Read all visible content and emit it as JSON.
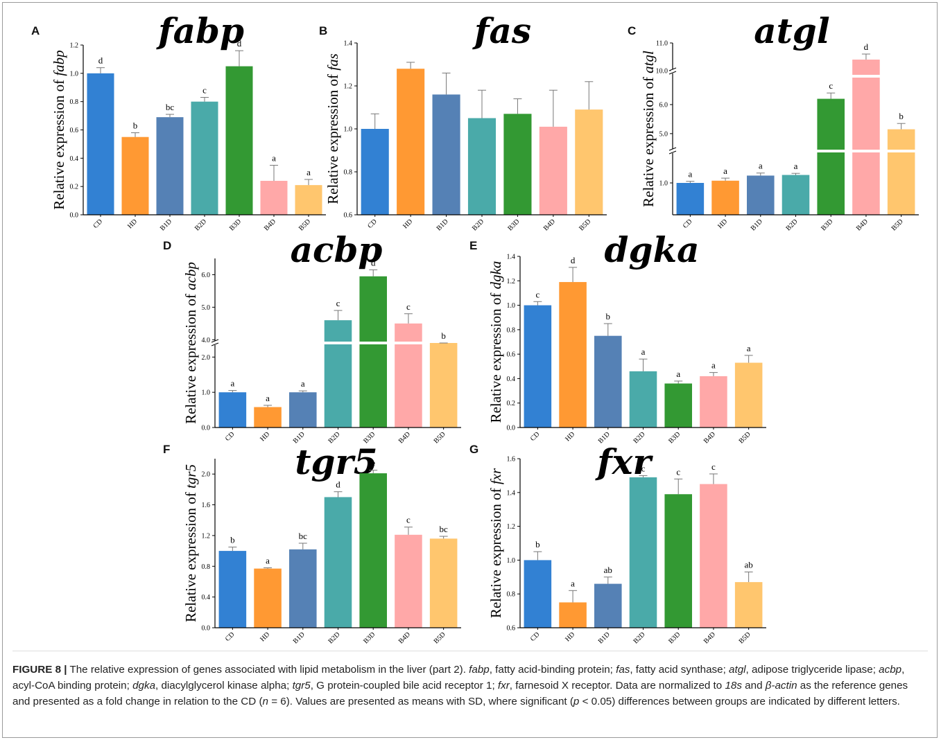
{
  "figure": {
    "caption": {
      "label": "FIGURE 8 |",
      "intro": " The relative expression of genes associated with lipid metabolism in the liver (part 2). ",
      "defs": [
        {
          "abbr": "fabp",
          "text": ", fatty acid-binding protein; "
        },
        {
          "abbr": "fas",
          "text": ", fatty acid synthase; "
        },
        {
          "abbr": "atgl",
          "text": ", adipose triglyceride lipase; "
        },
        {
          "abbr": "acbp",
          "text": ", acyl-CoA binding protein; "
        },
        {
          "abbr": "dgka",
          "text": ", diacylglycerol kinase alpha; "
        },
        {
          "abbr": "tgr5",
          "text": ", G protein-coupled bile acid receptor 1; "
        },
        {
          "abbr": "fxr",
          "text": ", farnesoid X receptor."
        }
      ],
      "norm_pre": " Data are normalized to ",
      "ref1": "18s",
      "norm_and": " and ",
      "ref2": "β-actin",
      "norm_mid": " as the reference genes and presented as a fold change in relation to the CD (",
      "n_var": "n",
      "n_val": " = 6). Values are presented as means with SD, where significant (",
      "p_var": "p",
      "p_val": " < 0.05) differences between groups are indicated by different letters."
    }
  },
  "colors": {
    "CD": "#3281d3",
    "HD": "#ff9933",
    "B1D": "#5581b5",
    "B2D": "#4aaaa9",
    "B3D": "#339933",
    "B4D": "#ffa8a8",
    "B5D": "#ffc66e"
  },
  "chart_data": [
    {
      "panel": "A",
      "type": "bar",
      "title": "fabp",
      "ylabel_prefix": "Relative expression of ",
      "ylabel_gene": "fabp",
      "categories": [
        "CD",
        "HD",
        "B1D",
        "B2D",
        "B3D",
        "B4D",
        "B5D"
      ],
      "values": [
        1.0,
        0.55,
        0.69,
        0.8,
        1.05,
        0.24,
        0.21
      ],
      "errors": [
        0.04,
        0.03,
        0.02,
        0.03,
        0.11,
        0.11,
        0.04
      ],
      "letters": [
        "d",
        "b",
        "bc",
        "c",
        "d",
        "a",
        "a"
      ],
      "ylim": [
        0,
        1.2
      ],
      "ticks": [
        "0.0",
        "0.2",
        "0.4",
        "0.6",
        "0.8",
        "1.0",
        "1.2"
      ]
    },
    {
      "panel": "B",
      "type": "bar",
      "title": "fas",
      "ylabel_prefix": "Relative expression of ",
      "ylabel_gene": "fas",
      "categories": [
        "CD",
        "HD",
        "B1D",
        "B2D",
        "B3D",
        "B4D",
        "B5D"
      ],
      "values": [
        1.0,
        1.28,
        1.16,
        1.05,
        1.07,
        1.01,
        1.09
      ],
      "errors": [
        0.07,
        0.03,
        0.1,
        0.13,
        0.07,
        0.17,
        0.13
      ],
      "letters": [
        "",
        "",
        "",
        "",
        "",
        "",
        ""
      ],
      "ylim": [
        0.6,
        1.4
      ],
      "ticks": [
        "0.6",
        "0.8",
        "1.0",
        "1.2",
        "1.4"
      ]
    },
    {
      "panel": "C",
      "type": "bar",
      "title": "atgl",
      "ylabel_prefix": "Relative expression of ",
      "ylabel_gene": "atgl",
      "categories": [
        "CD",
        "HD",
        "B1D",
        "B2D",
        "B3D",
        "B4D",
        "B5D"
      ],
      "values": [
        1.0,
        1.07,
        1.23,
        1.25,
        6.2,
        10.4,
        5.15
      ],
      "errors": [
        0.05,
        0.08,
        0.08,
        0.05,
        0.2,
        0.2,
        0.2
      ],
      "letters": [
        "a",
        "a",
        "a",
        "a",
        "c",
        "d",
        "b"
      ],
      "y_axis_break": true,
      "tick_labels": [
        "1.0",
        "5.0",
        "6.0",
        "10.0",
        "11.0"
      ]
    },
    {
      "panel": "D",
      "type": "bar",
      "title": "acbp",
      "ylabel_prefix": "Relative expression of ",
      "ylabel_gene": "acbp",
      "categories": [
        "CD",
        "HD",
        "B1D",
        "B2D",
        "B3D",
        "B4D",
        "B5D"
      ],
      "values": [
        1.0,
        0.58,
        1.0,
        4.6,
        5.95,
        4.5,
        2.45
      ],
      "errors": [
        0.05,
        0.05,
        0.04,
        0.3,
        0.2,
        0.3,
        0.2
      ],
      "letters": [
        "a",
        "a",
        "a",
        "c",
        "d",
        "c",
        "b"
      ],
      "y_axis_break": true,
      "tick_labels": [
        "0.0",
        "1.0",
        "2.0",
        "4.0",
        "5.0",
        "6.0"
      ]
    },
    {
      "panel": "E",
      "type": "bar",
      "title": "dgka",
      "ylabel_prefix": "Relative expression of ",
      "ylabel_gene": "dgka",
      "categories": [
        "CD",
        "HD",
        "B1D",
        "B2D",
        "B3D",
        "B4D",
        "B5D"
      ],
      "values": [
        1.0,
        1.19,
        0.75,
        0.46,
        0.36,
        0.42,
        0.53
      ],
      "errors": [
        0.03,
        0.12,
        0.1,
        0.1,
        0.02,
        0.03,
        0.06
      ],
      "letters": [
        "c",
        "d",
        "b",
        "a",
        "a",
        "a",
        "a"
      ],
      "ylim": [
        0,
        1.4
      ],
      "ticks": [
        "0.0",
        "0.2",
        "0.4",
        "0.6",
        "0.8",
        "1.0",
        "1.2",
        "1.4"
      ]
    },
    {
      "panel": "F",
      "type": "bar",
      "title": "tgr5",
      "ylabel_prefix": "Relative expression of ",
      "ylabel_gene": "tgr5",
      "categories": [
        "CD",
        "HD",
        "B1D",
        "B2D",
        "B3D",
        "B4D",
        "B5D"
      ],
      "values": [
        1.0,
        0.77,
        1.02,
        1.7,
        2.01,
        1.21,
        1.16
      ],
      "errors": [
        0.05,
        0.01,
        0.08,
        0.07,
        0.04,
        0.1,
        0.03
      ],
      "letters": [
        "b",
        "a",
        "bc",
        "d",
        "e",
        "c",
        "bc"
      ],
      "ylim": [
        0,
        2.2
      ],
      "ticks": [
        "0.0",
        "0.4",
        "0.8",
        "1.2",
        "1.6",
        "2.0"
      ],
      "tick_values": [
        0,
        0.4,
        0.8,
        1.2,
        1.6,
        2.0
      ]
    },
    {
      "panel": "G",
      "type": "bar",
      "title": "fxr",
      "ylabel_prefix": "Relative expression of ",
      "ylabel_gene": "fxr",
      "categories": [
        "CD",
        "HD",
        "B1D",
        "B2D",
        "B3D",
        "B4D",
        "B5D"
      ],
      "values": [
        1.0,
        0.75,
        0.86,
        1.49,
        1.39,
        1.45,
        0.87
      ],
      "errors": [
        0.05,
        0.07,
        0.04,
        0.01,
        0.09,
        0.06,
        0.06
      ],
      "letters": [
        "b",
        "a",
        "ab",
        "c",
        "c",
        "c",
        "ab"
      ],
      "ylim": [
        0.6,
        1.6
      ],
      "ticks": [
        "0.6",
        "0.8",
        "1.0",
        "1.2",
        "1.4",
        "1.6"
      ]
    }
  ]
}
